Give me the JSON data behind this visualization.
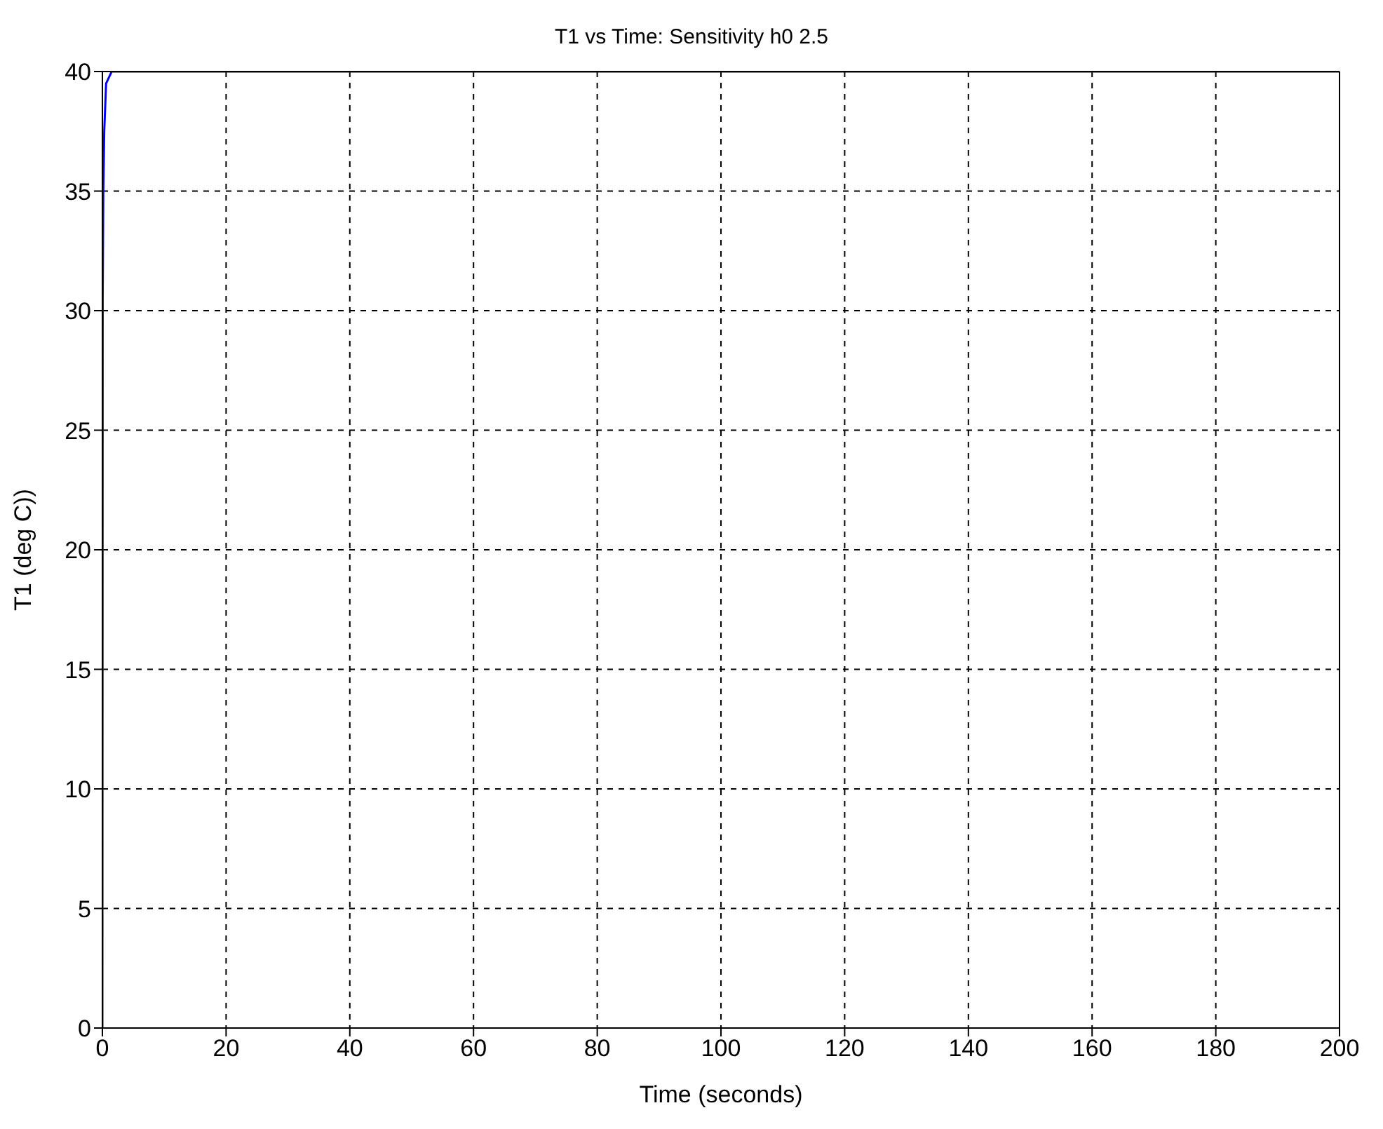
{
  "chart_data": {
    "type": "line",
    "title": "T1 vs Time: Sensitivity h0 2.5",
    "xlabel": "Time (seconds)",
    "ylabel": "T1 (deg C))",
    "x": [
      0,
      0.05,
      0.15,
      0.3,
      0.6,
      1.5,
      200
    ],
    "series": [
      {
        "color": "#0000ff",
        "values": [
          0,
          30.5,
          35,
          37.5,
          39.5,
          40,
          40
        ]
      }
    ],
    "xlim": [
      0,
      200
    ],
    "xticks": [
      0,
      20,
      40,
      60,
      80,
      100,
      120,
      140,
      160,
      180,
      200
    ],
    "ylim": [
      0,
      40
    ],
    "yticks": [
      0,
      5,
      10,
      15,
      20,
      25,
      30,
      35,
      40
    ],
    "grid": true,
    "marker": "none",
    "line_style": "solid"
  }
}
